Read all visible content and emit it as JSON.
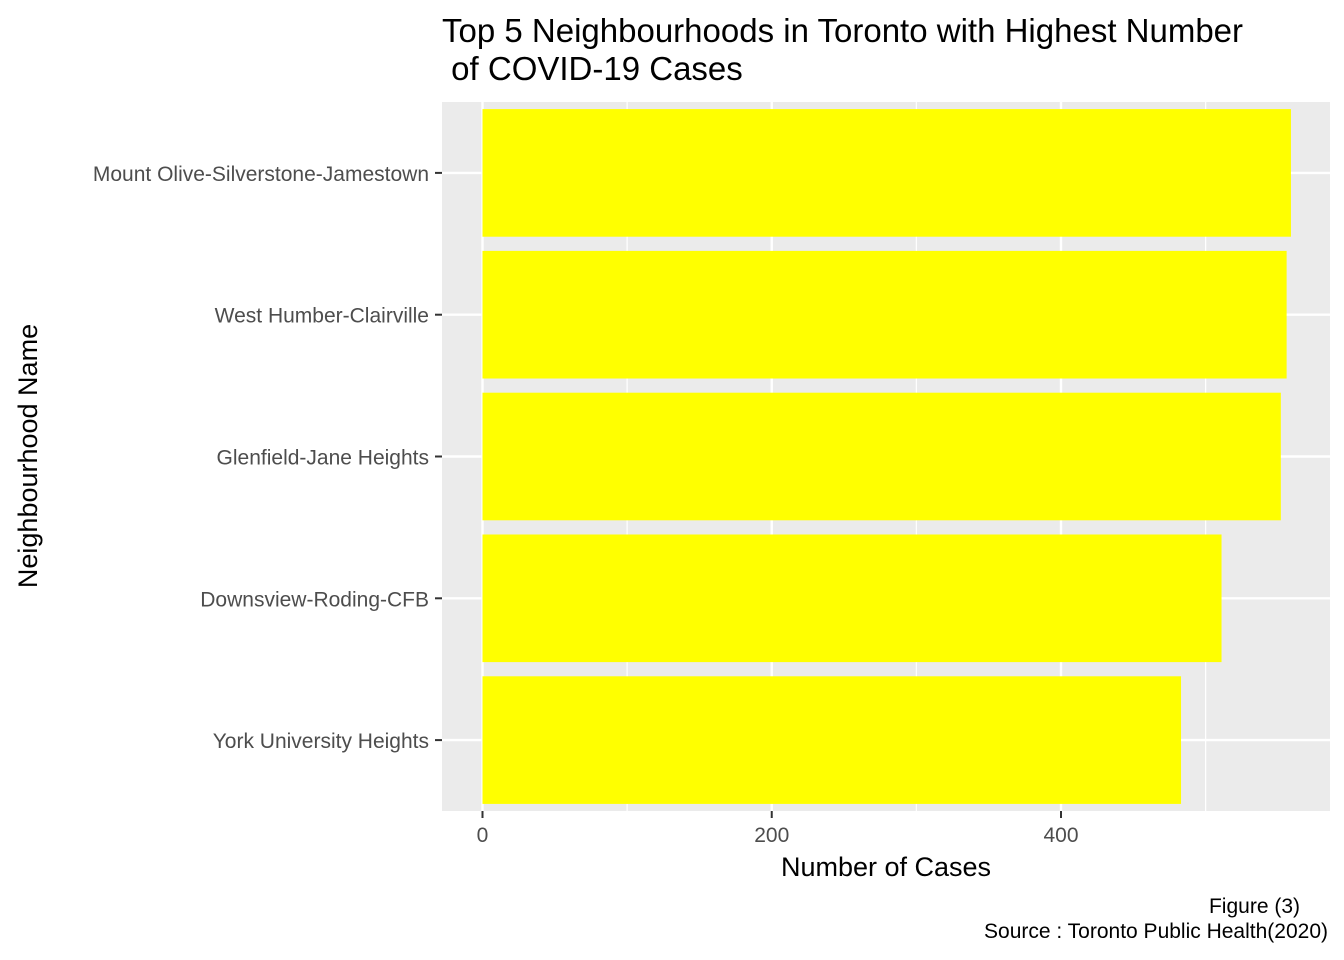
{
  "chart_data": {
    "type": "bar",
    "orientation": "horizontal",
    "title": "Top 5 Neighbourhoods in Toronto with Highest Number\n of COVID-19 Cases",
    "xlabel": "Number of Cases",
    "ylabel": "Neighbourhood Name",
    "categories": [
      "Mount Olive-Silverstone-Jamestown",
      "West Humber-Clairville",
      "Glenfield-Jane Heights",
      "Downsview-Roding-CFB",
      "York University Heights"
    ],
    "values": [
      559,
      556,
      552,
      511,
      483
    ],
    "xlim": [
      -28,
      586
    ],
    "x_ticks": [
      0,
      200,
      400
    ],
    "bar_color": "#ffff00",
    "panel_background": "#ebebeb",
    "grid": true,
    "legend": "none"
  },
  "caption": {
    "figure": "Figure (3)",
    "source": "Source : Toronto Public Health(2020)"
  }
}
